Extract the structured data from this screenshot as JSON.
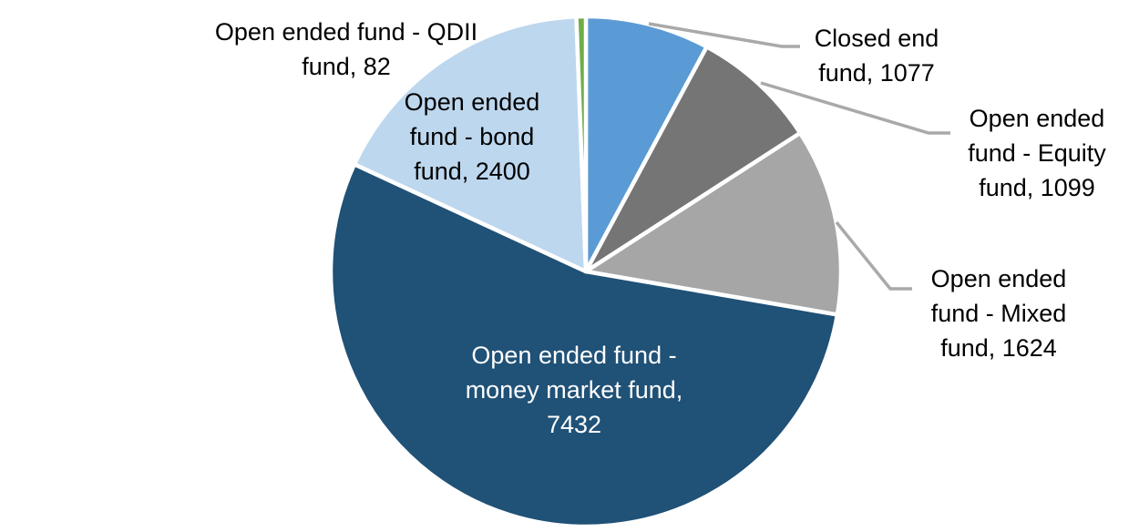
{
  "chart_data": {
    "type": "pie",
    "title": "",
    "legend_position": "none",
    "grid": false,
    "total": 13714,
    "label_line_color": "#A9A9A9",
    "slice_border_color": "#FFFFFF",
    "slices": [
      {
        "name": "Closed end fund",
        "value": 1077,
        "color": "#5B9BD5",
        "label_text": "Closed end\nfund, 1077",
        "label_placement": "outside-right"
      },
      {
        "name": "Open ended fund - Equity fund",
        "value": 1099,
        "color": "#757575",
        "label_text": "Open ended\nfund - Equity\nfund, 1099",
        "label_placement": "outside-right"
      },
      {
        "name": "Open ended fund - Mixed fund",
        "value": 1624,
        "color": "#A6A6A6",
        "label_text": "Open ended\nfund - Mixed\nfund, 1624",
        "label_placement": "outside-right"
      },
      {
        "name": "Open ended fund - money market fund",
        "value": 7432,
        "color": "#205176",
        "label_text": "Open ended fund -\nmoney market fund,\n7432",
        "label_placement": "inside"
      },
      {
        "name": "Open ended fund - bond fund",
        "value": 2400,
        "color": "#BDD7EE",
        "label_text": "Open ended\nfund - bond\nfund, 2400",
        "label_placement": "outside-left"
      },
      {
        "name": "Open ended fund - QDII fund",
        "value": 82,
        "color": "#70AD47",
        "label_text": "Open ended fund - QDII\nfund, 82",
        "label_placement": "outside-left"
      }
    ]
  }
}
